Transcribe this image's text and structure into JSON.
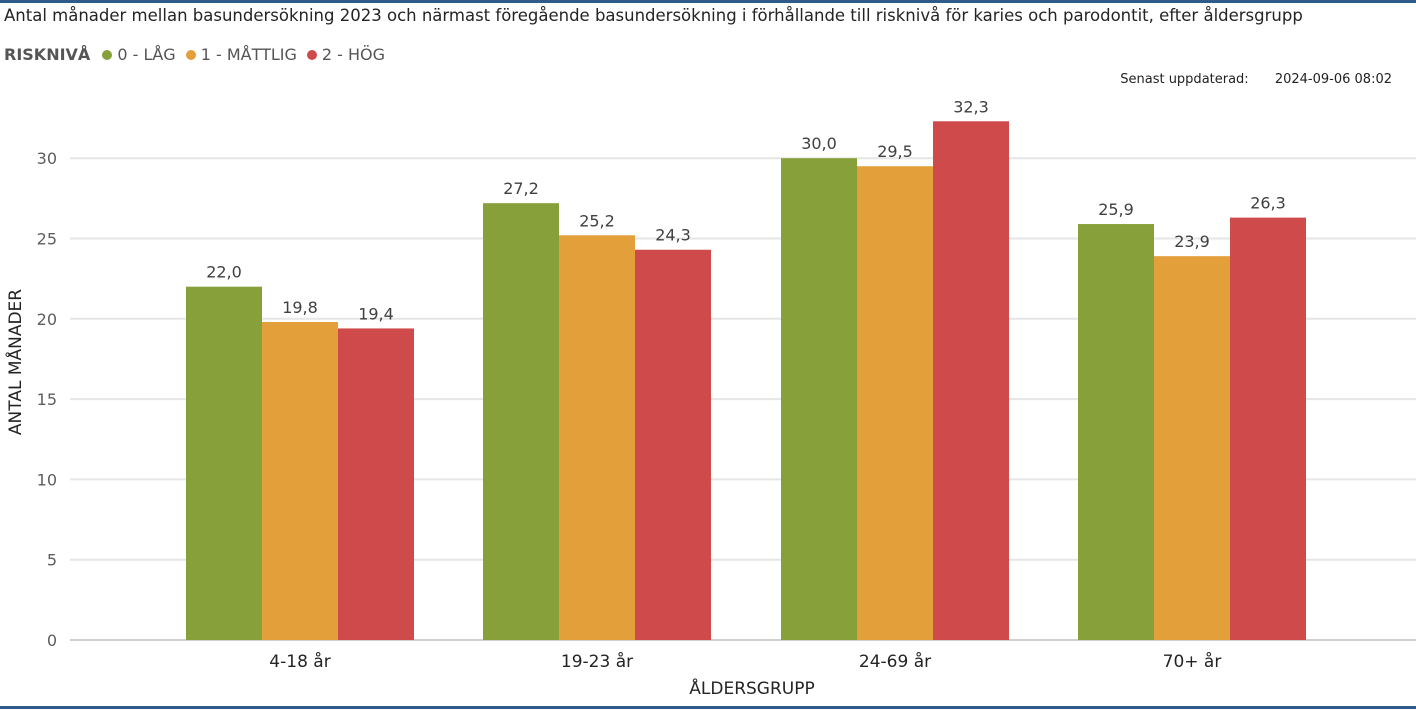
{
  "title": "Antal månader mellan basundersökning 2023 och närmast föregående basundersökning i förhållande till risknivå för karies och parodontit, efter åldersgrupp",
  "legend_title": "RISKNIVÅ",
  "updated": {
    "label": "Senast uppdaterad:",
    "value": "2024-09-06 08:02"
  },
  "chart_data": {
    "type": "bar",
    "categories": [
      "4-18 år",
      "19-23 år",
      "24-69 år",
      "70+ år"
    ],
    "series": [
      {
        "name": "0 - LÅG",
        "color": "#87a03a",
        "values": [
          22.0,
          27.2,
          30.0,
          25.9
        ]
      },
      {
        "name": "1 - MÅTTLIG",
        "color": "#e3a03a",
        "values": [
          19.8,
          25.2,
          29.5,
          23.9
        ]
      },
      {
        "name": "2 - HÖG",
        "color": "#cf4a4a",
        "values": [
          19.4,
          24.3,
          32.3,
          26.3
        ]
      }
    ],
    "xlabel": "ÅLDERSGRUPP",
    "ylabel": "ANTAL MÅNADER",
    "ylim": [
      0,
      33
    ],
    "yticks": [
      0,
      5,
      10,
      15,
      20,
      25,
      30
    ],
    "grid": true,
    "legend_position": "top-left"
  }
}
